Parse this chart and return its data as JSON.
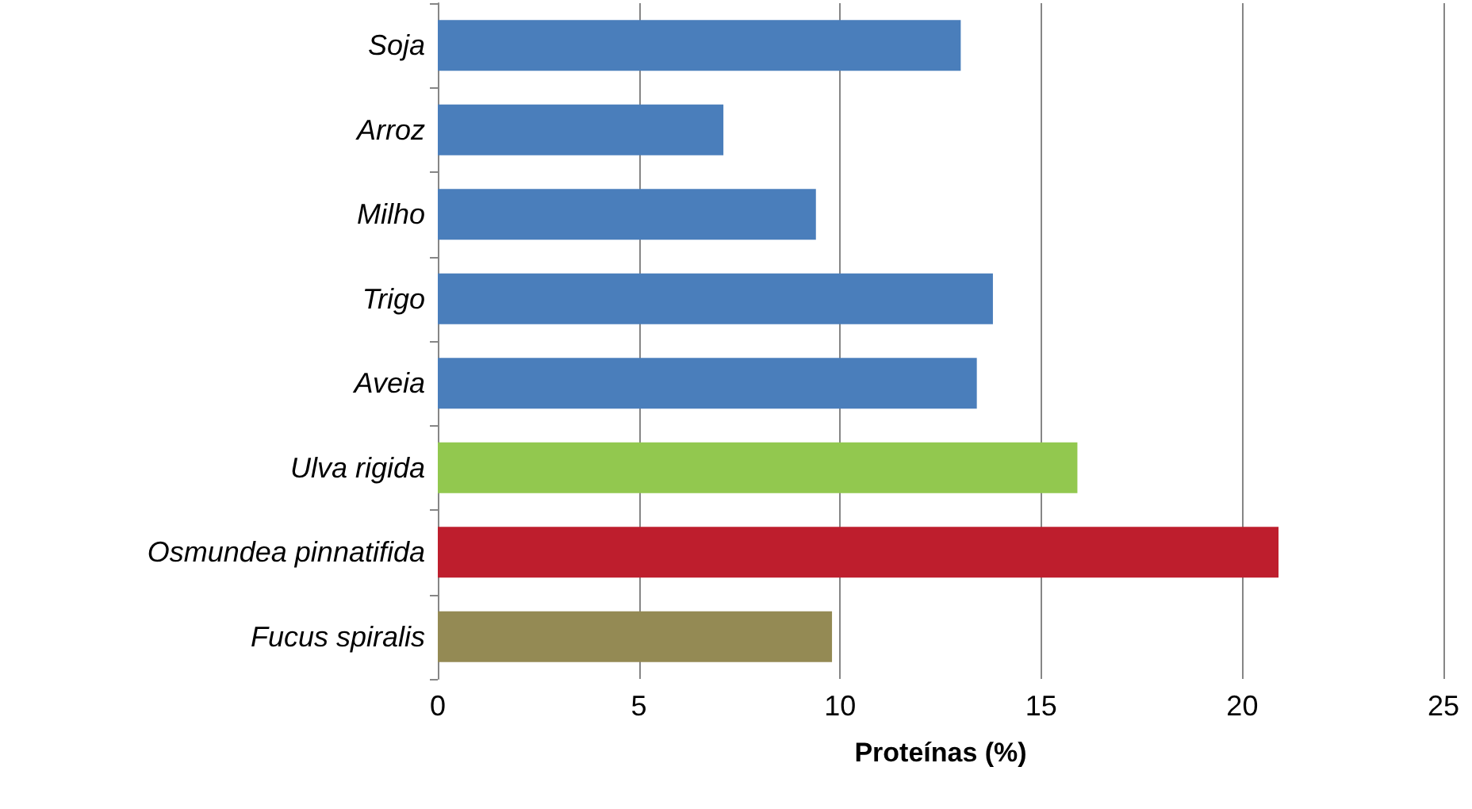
{
  "chart_data": {
    "type": "bar",
    "orientation": "horizontal",
    "xlabel": "Proteínas (%)",
    "categories": [
      "Soja",
      "Arroz",
      "Milho",
      "Trigo",
      "Aveia",
      "Ulva rigida",
      "Osmundea pinnatifida",
      "Fucus spiralis"
    ],
    "values": [
      13.0,
      7.1,
      9.4,
      13.8,
      13.4,
      15.9,
      20.9,
      9.8
    ],
    "colors": [
      "#4a7ebb",
      "#4a7ebb",
      "#4a7ebb",
      "#4a7ebb",
      "#4a7ebb",
      "#92c84f",
      "#be1e2d",
      "#948a54"
    ],
    "xlim": [
      0,
      25
    ],
    "xticks": [
      0,
      5,
      10,
      15,
      20,
      25
    ],
    "grid": "x"
  }
}
